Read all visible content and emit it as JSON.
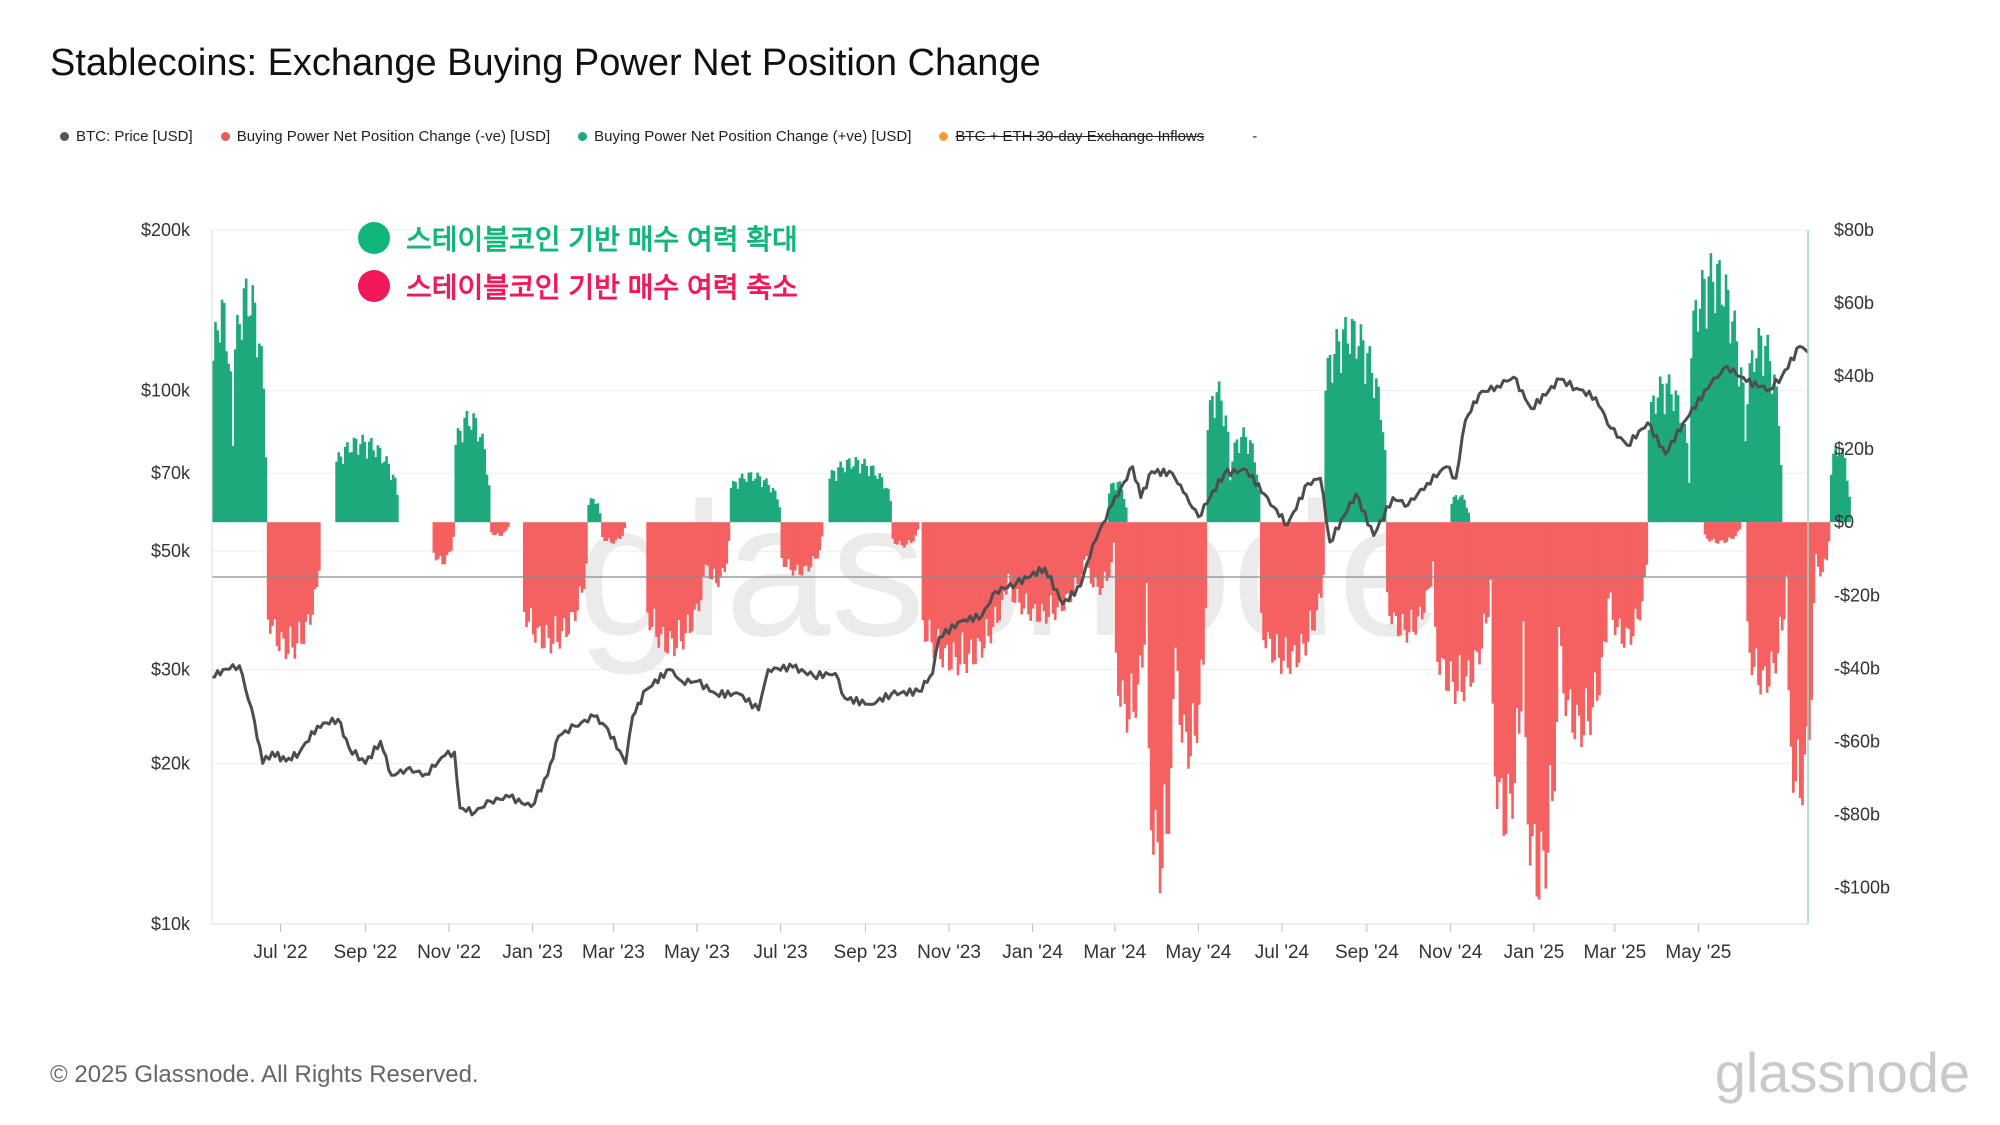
{
  "title": "Stablecoins: Exchange Buying Power Net Position Change",
  "legend": [
    {
      "label": "BTC: Price [USD]",
      "color": "#555555",
      "struck": false
    },
    {
      "label": "Buying Power Net Position Change (-ve) [USD]",
      "color": "#f05a5a",
      "struck": false
    },
    {
      "label": "Buying Power Net Position Change (+ve) [USD]",
      "color": "#1ea97c",
      "struck": false
    },
    {
      "label": "BTC + ETH 30-day Exchange Inflows",
      "color": "#f39c32",
      "struck": true
    }
  ],
  "legend_extra": "-",
  "annotations": [
    {
      "text": "스테이블코인 기반 매수 여력 확대",
      "color": "#12b57a"
    },
    {
      "text": "스테이블코인 기반 매수 여력 축소",
      "color": "#f0195a"
    }
  ],
  "footer": "© 2025 Glassnode. All Rights Reserved.",
  "brand": "glassnode",
  "colors": {
    "positive": "#1ea97c",
    "negative": "#f56060",
    "price": "#4d4d4d",
    "grid": "#eeeeee",
    "axis": "#9fd9c2"
  },
  "chart_data": {
    "type": "bar",
    "x_ticks": [
      "Jul '22",
      "Sep '22",
      "Nov '22",
      "Jan '23",
      "Mar '23",
      "May '23",
      "Jul '23",
      "Sep '23",
      "Nov '23",
      "Jan '24",
      "Mar '24",
      "May '24",
      "Jul '24",
      "Sep '24",
      "Nov '24",
      "Jan '25",
      "Mar '25",
      "May '25"
    ],
    "x_range": [
      "2022-05-12",
      "2025-07-20"
    ],
    "y_left": {
      "label": "BTC: Price [USD]",
      "scale": "log",
      "range": [
        10000,
        200000
      ],
      "ticks": [
        {
          "v": 10000,
          "t": "$10k"
        },
        {
          "v": 20000,
          "t": "$20k"
        },
        {
          "v": 30000,
          "t": "$30k"
        },
        {
          "v": 50000,
          "t": "$50k"
        },
        {
          "v": 70000,
          "t": "$70k"
        },
        {
          "v": 100000,
          "t": "$100k"
        },
        {
          "v": 200000,
          "t": "$200k"
        }
      ]
    },
    "y_right": {
      "label": "Buying Power Net Position Change [USD]",
      "scale": "linear",
      "range": [
        -110,
        80
      ],
      "unit": "b",
      "ticks": [
        {
          "v": 80,
          "t": "$80b"
        },
        {
          "v": 60,
          "t": "$60b"
        },
        {
          "v": 40,
          "t": "$40b"
        },
        {
          "v": 20,
          "t": "$20b"
        },
        {
          "v": 0,
          "t": "$0"
        },
        {
          "v": -20,
          "t": "-$20b"
        },
        {
          "v": -40,
          "t": "-$40b"
        },
        {
          "v": -60,
          "t": "-$60b"
        },
        {
          "v": -80,
          "t": "-$80b"
        },
        {
          "v": -100,
          "t": "-$100b"
        }
      ]
    },
    "reference_line_right": -15,
    "series": [
      {
        "name": "BTC: Price [USD]",
        "type": "line",
        "axis": "left",
        "points": [
          [
            "2022-05-12",
            29000
          ],
          [
            "2022-05-20",
            30000
          ],
          [
            "2022-06-01",
            30500
          ],
          [
            "2022-06-12",
            24000
          ],
          [
            "2022-06-18",
            20000
          ],
          [
            "2022-06-25",
            21000
          ],
          [
            "2022-07-05",
            20200
          ],
          [
            "2022-07-15",
            21000
          ],
          [
            "2022-07-28",
            23500
          ],
          [
            "2022-08-12",
            24200
          ],
          [
            "2022-08-20",
            21400
          ],
          [
            "2022-09-01",
            20000
          ],
          [
            "2022-09-12",
            22000
          ],
          [
            "2022-09-20",
            19000
          ],
          [
            "2022-10-01",
            19500
          ],
          [
            "2022-10-15",
            19100
          ],
          [
            "2022-10-29",
            20700
          ],
          [
            "2022-11-05",
            21000
          ],
          [
            "2022-11-09",
            16500
          ],
          [
            "2022-11-20",
            16200
          ],
          [
            "2022-12-01",
            17000
          ],
          [
            "2022-12-15",
            17300
          ],
          [
            "2022-12-31",
            16600
          ],
          [
            "2023-01-12",
            19000
          ],
          [
            "2023-01-20",
            22500
          ],
          [
            "2023-02-01",
            23500
          ],
          [
            "2023-02-15",
            24500
          ],
          [
            "2023-02-25",
            23200
          ],
          [
            "2023-03-10",
            20000
          ],
          [
            "2023-03-15",
            24500
          ],
          [
            "2023-03-25",
            27500
          ],
          [
            "2023-04-11",
            30000
          ],
          [
            "2023-04-20",
            28500
          ],
          [
            "2023-05-01",
            28500
          ],
          [
            "2023-05-15",
            27000
          ],
          [
            "2023-06-01",
            27000
          ],
          [
            "2023-06-15",
            25200
          ],
          [
            "2023-06-22",
            30000
          ],
          [
            "2023-07-10",
            30300
          ],
          [
            "2023-07-25",
            29200
          ],
          [
            "2023-08-10",
            29500
          ],
          [
            "2023-08-17",
            26500
          ],
          [
            "2023-09-05",
            25800
          ],
          [
            "2023-09-20",
            27000
          ],
          [
            "2023-10-10",
            27300
          ],
          [
            "2023-10-20",
            29500
          ],
          [
            "2023-10-25",
            34500
          ],
          [
            "2023-11-10",
            37000
          ],
          [
            "2023-11-25",
            37800
          ],
          [
            "2023-12-05",
            42000
          ],
          [
            "2023-12-20",
            43500
          ],
          [
            "2024-01-10",
            46500
          ],
          [
            "2024-01-23",
            39800
          ],
          [
            "2024-02-05",
            43000
          ],
          [
            "2024-02-14",
            51500
          ],
          [
            "2024-02-28",
            61000
          ],
          [
            "2024-03-14",
            72000
          ],
          [
            "2024-03-20",
            63000
          ],
          [
            "2024-03-28",
            70500
          ],
          [
            "2024-04-12",
            70000
          ],
          [
            "2024-04-20",
            64500
          ],
          [
            "2024-05-01",
            58000
          ],
          [
            "2024-05-20",
            70000
          ],
          [
            "2024-06-05",
            71000
          ],
          [
            "2024-06-25",
            60500
          ],
          [
            "2024-07-05",
            56000
          ],
          [
            "2024-07-20",
            67000
          ],
          [
            "2024-07-29",
            68500
          ],
          [
            "2024-08-05",
            52000
          ],
          [
            "2024-08-24",
            64000
          ],
          [
            "2024-09-06",
            53500
          ],
          [
            "2024-09-20",
            63000
          ],
          [
            "2024-10-01",
            61000
          ],
          [
            "2024-10-15",
            67000
          ],
          [
            "2024-10-29",
            72000
          ],
          [
            "2024-11-05",
            68500
          ],
          [
            "2024-11-12",
            88000
          ],
          [
            "2024-11-22",
            98500
          ],
          [
            "2024-12-05",
            102000
          ],
          [
            "2024-12-17",
            106000
          ],
          [
            "2024-12-30",
            92500
          ],
          [
            "2025-01-20",
            105000
          ],
          [
            "2025-02-01",
            101000
          ],
          [
            "2025-02-15",
            97000
          ],
          [
            "2025-02-26",
            85000
          ],
          [
            "2025-03-10",
            79000
          ],
          [
            "2025-03-25",
            87000
          ],
          [
            "2025-04-07",
            76000
          ],
          [
            "2025-04-20",
            87000
          ],
          [
            "2025-05-10",
            103000
          ],
          [
            "2025-05-22",
            111000
          ],
          [
            "2025-06-05",
            104000
          ],
          [
            "2025-06-22",
            100500
          ],
          [
            "2025-07-01",
            106500
          ],
          [
            "2025-07-14",
            121000
          ],
          [
            "2025-07-20",
            118000
          ]
        ]
      },
      {
        "name": "Buying Power Net Position Change (-ve) [USD]",
        "type": "bar",
        "axis": "right",
        "segments": [
          [
            "2022-06-21",
            "2022-07-30",
            -38
          ],
          [
            "2022-10-20",
            "2022-11-05",
            -12
          ],
          [
            "2022-12-01",
            "2022-12-15",
            -4
          ],
          [
            "2022-12-25",
            "2023-02-10",
            -36
          ],
          [
            "2023-02-20",
            "2023-03-10",
            -6
          ],
          [
            "2023-03-25",
            "2023-05-08",
            -37
          ],
          [
            "2023-05-08",
            "2023-05-25",
            -18
          ],
          [
            "2023-07-01",
            "2023-08-01",
            -15
          ],
          [
            "2023-09-20",
            "2023-10-10",
            -7
          ],
          [
            "2023-10-12",
            "2023-12-15",
            -42
          ],
          [
            "2023-12-15",
            "2024-02-10",
            -28
          ],
          [
            "2024-02-10",
            "2024-03-01",
            -20
          ],
          [
            "2024-03-01",
            "2024-03-25",
            -58
          ],
          [
            "2024-03-25",
            "2024-04-15",
            -102
          ],
          [
            "2024-04-15",
            "2024-05-07",
            -68
          ],
          [
            "2024-06-15",
            "2024-08-01",
            -42
          ],
          [
            "2024-09-15",
            "2024-10-20",
            -33
          ],
          [
            "2024-10-20",
            "2024-12-01",
            -50
          ],
          [
            "2024-12-01",
            "2024-12-25",
            -88
          ],
          [
            "2024-12-25",
            "2025-01-20",
            -106
          ],
          [
            "2025-01-20",
            "2025-02-25",
            -62
          ],
          [
            "2025-02-25",
            "2025-03-25",
            -35
          ],
          [
            "2025-05-05",
            "2025-06-01",
            -6
          ],
          [
            "2025-06-05",
            "2025-07-05",
            -48
          ],
          [
            "2025-07-05",
            "2025-07-25",
            -80
          ],
          [
            "2025-07-25",
            "2025-08-05",
            -15
          ]
        ]
      },
      {
        "name": "Buying Power Net Position Change (+ve) [USD]",
        "type": "bar",
        "axis": "right",
        "segments": [
          [
            "2022-05-12",
            "2022-05-28",
            63
          ],
          [
            "2022-05-28",
            "2022-06-21",
            68
          ],
          [
            "2022-08-10",
            "2022-09-25",
            24
          ],
          [
            "2022-11-05",
            "2022-12-01",
            31
          ],
          [
            "2023-02-10",
            "2023-02-20",
            7
          ],
          [
            "2023-05-25",
            "2023-07-01",
            14
          ],
          [
            "2023-08-05",
            "2023-09-20",
            18
          ],
          [
            "2024-02-25",
            "2024-03-10",
            12
          ],
          [
            "2024-05-07",
            "2024-05-25",
            39
          ],
          [
            "2024-05-25",
            "2024-06-15",
            26
          ],
          [
            "2024-08-01",
            "2024-09-15",
            57
          ],
          [
            "2024-11-01",
            "2024-11-15",
            8
          ],
          [
            "2025-03-25",
            "2025-04-25",
            41
          ],
          [
            "2025-04-25",
            "2025-06-05",
            74
          ],
          [
            "2025-06-05",
            "2025-07-01",
            54
          ],
          [
            "2025-08-05",
            "2025-08-20",
            22
          ]
        ]
      }
    ]
  }
}
